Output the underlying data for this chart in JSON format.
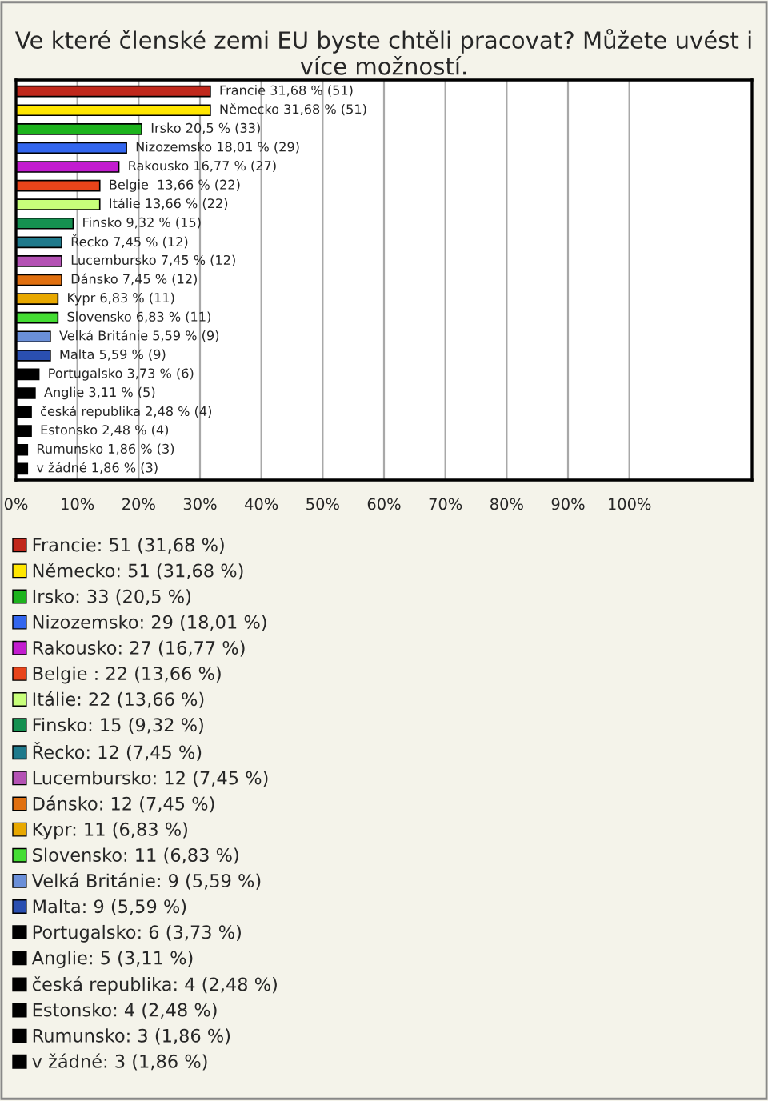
{
  "chart_data": {
    "type": "bar",
    "orientation": "horizontal",
    "title": "Ve které členské zemi EU byste chtěli pracovat? Můžete uvést i více možností.",
    "categories": [
      null,
      null,
      null,
      null,
      null,
      null,
      null,
      null,
      null,
      null,
      null,
      null,
      null,
      null,
      null,
      null,
      null,
      null,
      null,
      null,
      null
    ],
    "series": [
      {
        "name": "Francie: 51 (31,68 %)",
        "color": "#c0281c",
        "values": [
          31.68,
          null,
          null,
          null,
          null,
          null,
          null,
          null,
          null,
          null,
          null,
          null,
          null,
          null,
          null,
          null,
          null,
          null,
          null,
          null,
          null
        ],
        "value_labels": [
          "Francie 31,68 % (51)",
          null,
          null,
          null,
          null,
          null,
          null,
          null,
          null,
          null,
          null,
          null,
          null,
          null,
          null,
          null,
          null,
          null,
          null,
          null,
          null
        ]
      },
      {
        "name": "Německo: 51 (31,68 %)",
        "color": "#ffe600",
        "values": [
          null,
          31.68,
          null,
          null,
          null,
          null,
          null,
          null,
          null,
          null,
          null,
          null,
          null,
          null,
          null,
          null,
          null,
          null,
          null,
          null,
          null
        ],
        "value_labels": [
          null,
          "Německo 31,68 % (51)",
          null,
          null,
          null,
          null,
          null,
          null,
          null,
          null,
          null,
          null,
          null,
          null,
          null,
          null,
          null,
          null,
          null,
          null,
          null
        ]
      },
      {
        "name": "Irsko: 33 (20,5 %)",
        "color": "#1db31d",
        "values": [
          null,
          null,
          20.5,
          null,
          null,
          null,
          null,
          null,
          null,
          null,
          null,
          null,
          null,
          null,
          null,
          null,
          null,
          null,
          null,
          null,
          null
        ],
        "value_labels": [
          null,
          null,
          "Irsko 20,5 % (33)",
          null,
          null,
          null,
          null,
          null,
          null,
          null,
          null,
          null,
          null,
          null,
          null,
          null,
          null,
          null,
          null,
          null,
          null
        ]
      },
      {
        "name": "Nizozemsko: 29 (18,01 %)",
        "color": "#3366ee",
        "values": [
          null,
          null,
          null,
          18.01,
          null,
          null,
          null,
          null,
          null,
          null,
          null,
          null,
          null,
          null,
          null,
          null,
          null,
          null,
          null,
          null,
          null
        ],
        "value_labels": [
          null,
          null,
          null,
          "Nizozemsko 18,01 % (29)",
          null,
          null,
          null,
          null,
          null,
          null,
          null,
          null,
          null,
          null,
          null,
          null,
          null,
          null,
          null,
          null,
          null
        ]
      },
      {
        "name": "Rakousko: 27 (16,77 %)",
        "color": "#c21ccf",
        "values": [
          null,
          null,
          null,
          null,
          16.77,
          null,
          null,
          null,
          null,
          null,
          null,
          null,
          null,
          null,
          null,
          null,
          null,
          null,
          null,
          null,
          null
        ],
        "value_labels": [
          null,
          null,
          null,
          null,
          "Rakousko 16,77 % (27)",
          null,
          null,
          null,
          null,
          null,
          null,
          null,
          null,
          null,
          null,
          null,
          null,
          null,
          null,
          null,
          null
        ]
      },
      {
        "name": "Belgie : 22 (13,66 %)",
        "color": "#e8441a",
        "values": [
          null,
          null,
          null,
          null,
          null,
          13.66,
          null,
          null,
          null,
          null,
          null,
          null,
          null,
          null,
          null,
          null,
          null,
          null,
          null,
          null,
          null
        ],
        "value_labels": [
          null,
          null,
          null,
          null,
          null,
          "Belgie  13,66 % (22)",
          null,
          null,
          null,
          null,
          null,
          null,
          null,
          null,
          null,
          null,
          null,
          null,
          null,
          null,
          null
        ]
      },
      {
        "name": "Itálie: 22 (13,66 %)",
        "color": "#c8ff7a",
        "values": [
          null,
          null,
          null,
          null,
          null,
          null,
          13.66,
          null,
          null,
          null,
          null,
          null,
          null,
          null,
          null,
          null,
          null,
          null,
          null,
          null,
          null
        ],
        "value_labels": [
          null,
          null,
          null,
          null,
          null,
          null,
          "Itálie 13,66 % (22)",
          null,
          null,
          null,
          null,
          null,
          null,
          null,
          null,
          null,
          null,
          null,
          null,
          null,
          null
        ]
      },
      {
        "name": "Finsko: 15 (9,32 %)",
        "color": "#159050",
        "values": [
          null,
          null,
          null,
          null,
          null,
          null,
          null,
          9.32,
          null,
          null,
          null,
          null,
          null,
          null,
          null,
          null,
          null,
          null,
          null,
          null,
          null
        ],
        "value_labels": [
          null,
          null,
          null,
          null,
          null,
          null,
          null,
          "Finsko 9,32 % (15)",
          null,
          null,
          null,
          null,
          null,
          null,
          null,
          null,
          null,
          null,
          null,
          null,
          null
        ]
      },
      {
        "name": "Řecko: 12 (7,45 %)",
        "color": "#1f7a8c",
        "values": [
          null,
          null,
          null,
          null,
          null,
          null,
          null,
          null,
          7.45,
          null,
          null,
          null,
          null,
          null,
          null,
          null,
          null,
          null,
          null,
          null,
          null
        ],
        "value_labels": [
          null,
          null,
          null,
          null,
          null,
          null,
          null,
          null,
          "Řecko 7,45 % (12)",
          null,
          null,
          null,
          null,
          null,
          null,
          null,
          null,
          null,
          null,
          null,
          null
        ]
      },
      {
        "name": "Lucembursko: 12 (7,45 %)",
        "color": "#b452b4",
        "values": [
          null,
          null,
          null,
          null,
          null,
          null,
          null,
          null,
          null,
          7.45,
          null,
          null,
          null,
          null,
          null,
          null,
          null,
          null,
          null,
          null,
          null
        ],
        "value_labels": [
          null,
          null,
          null,
          null,
          null,
          null,
          null,
          null,
          null,
          "Lucembursko 7,45 % (12)",
          null,
          null,
          null,
          null,
          null,
          null,
          null,
          null,
          null,
          null,
          null
        ]
      },
      {
        "name": "Dánsko: 12 (7,45 %)",
        "color": "#e07010",
        "values": [
          null,
          null,
          null,
          null,
          null,
          null,
          null,
          null,
          null,
          null,
          7.45,
          null,
          null,
          null,
          null,
          null,
          null,
          null,
          null,
          null,
          null
        ],
        "value_labels": [
          null,
          null,
          null,
          null,
          null,
          null,
          null,
          null,
          null,
          null,
          "Dánsko 7,45 % (12)",
          null,
          null,
          null,
          null,
          null,
          null,
          null,
          null,
          null,
          null
        ]
      },
      {
        "name": "Kypr: 11 (6,83 %)",
        "color": "#e8a800",
        "values": [
          null,
          null,
          null,
          null,
          null,
          null,
          null,
          null,
          null,
          null,
          null,
          6.83,
          null,
          null,
          null,
          null,
          null,
          null,
          null,
          null,
          null
        ],
        "value_labels": [
          null,
          null,
          null,
          null,
          null,
          null,
          null,
          null,
          null,
          null,
          null,
          "Kypr 6,83 % (11)",
          null,
          null,
          null,
          null,
          null,
          null,
          null,
          null,
          null
        ]
      },
      {
        "name": "Slovensko: 11 (6,83 %)",
        "color": "#44dd33",
        "values": [
          null,
          null,
          null,
          null,
          null,
          null,
          null,
          null,
          null,
          null,
          null,
          null,
          6.83,
          null,
          null,
          null,
          null,
          null,
          null,
          null,
          null
        ],
        "value_labels": [
          null,
          null,
          null,
          null,
          null,
          null,
          null,
          null,
          null,
          null,
          null,
          null,
          "Slovensko 6,83 % (11)",
          null,
          null,
          null,
          null,
          null,
          null,
          null,
          null
        ]
      },
      {
        "name": "Velká Británie: 9 (5,59 %)",
        "color": "#6a8fd8",
        "values": [
          null,
          null,
          null,
          null,
          null,
          null,
          null,
          null,
          null,
          null,
          null,
          null,
          null,
          5.59,
          null,
          null,
          null,
          null,
          null,
          null,
          null
        ],
        "value_labels": [
          null,
          null,
          null,
          null,
          null,
          null,
          null,
          null,
          null,
          null,
          null,
          null,
          null,
          "Velká Británie 5,59 % (9)",
          null,
          null,
          null,
          null,
          null,
          null,
          null
        ]
      },
      {
        "name": "Malta: 9 (5,59 %)",
        "color": "#2a4fb0",
        "values": [
          null,
          null,
          null,
          null,
          null,
          null,
          null,
          null,
          null,
          null,
          null,
          null,
          null,
          null,
          5.59,
          null,
          null,
          null,
          null,
          null,
          null
        ],
        "value_labels": [
          null,
          null,
          null,
          null,
          null,
          null,
          null,
          null,
          null,
          null,
          null,
          null,
          null,
          null,
          "Malta 5,59 % (9)",
          null,
          null,
          null,
          null,
          null,
          null
        ]
      },
      {
        "name": "Portugalsko: 6 (3,73 %)",
        "color": "#000000",
        "values": [
          null,
          null,
          null,
          null,
          null,
          null,
          null,
          null,
          null,
          null,
          null,
          null,
          null,
          null,
          null,
          3.73,
          null,
          null,
          null,
          null,
          null
        ],
        "value_labels": [
          null,
          null,
          null,
          null,
          null,
          null,
          null,
          null,
          null,
          null,
          null,
          null,
          null,
          null,
          null,
          "Portugalsko 3,73 % (6)",
          null,
          null,
          null,
          null,
          null
        ]
      },
      {
        "name": "Anglie: 5 (3,11 %)",
        "color": "#000000",
        "values": [
          null,
          null,
          null,
          null,
          null,
          null,
          null,
          null,
          null,
          null,
          null,
          null,
          null,
          null,
          null,
          null,
          3.11,
          null,
          null,
          null,
          null
        ],
        "value_labels": [
          null,
          null,
          null,
          null,
          null,
          null,
          null,
          null,
          null,
          null,
          null,
          null,
          null,
          null,
          null,
          null,
          "Anglie 3,11 % (5)",
          null,
          null,
          null,
          null
        ]
      },
      {
        "name": "česká republika: 4 (2,48 %)",
        "color": "#000000",
        "values": [
          null,
          null,
          null,
          null,
          null,
          null,
          null,
          null,
          null,
          null,
          null,
          null,
          null,
          null,
          null,
          null,
          null,
          2.48,
          null,
          null,
          null
        ],
        "value_labels": [
          null,
          null,
          null,
          null,
          null,
          null,
          null,
          null,
          null,
          null,
          null,
          null,
          null,
          null,
          null,
          null,
          null,
          "česká republika 2,48 % (4)",
          null,
          null,
          null
        ]
      },
      {
        "name": "Estonsko: 4 (2,48 %)",
        "color": "#000000",
        "values": [
          null,
          null,
          null,
          null,
          null,
          null,
          null,
          null,
          null,
          null,
          null,
          null,
          null,
          null,
          null,
          null,
          null,
          null,
          2.48,
          null,
          null
        ],
        "value_labels": [
          null,
          null,
          null,
          null,
          null,
          null,
          null,
          null,
          null,
          null,
          null,
          null,
          null,
          null,
          null,
          null,
          null,
          null,
          "Estonsko 2,48 % (4)",
          null,
          null
        ]
      },
      {
        "name": "Rumunsko: 3 (1,86 %)",
        "color": "#000000",
        "values": [
          null,
          null,
          null,
          null,
          null,
          null,
          null,
          null,
          null,
          null,
          null,
          null,
          null,
          null,
          null,
          null,
          null,
          null,
          null,
          1.86,
          null
        ],
        "value_labels": [
          null,
          null,
          null,
          null,
          null,
          null,
          null,
          null,
          null,
          null,
          null,
          null,
          null,
          null,
          null,
          null,
          null,
          null,
          null,
          "Rumunsko 1,86 % (3)",
          null
        ]
      },
      {
        "name": "v žádné: 3 (1,86 %)",
        "color": "#000000",
        "values": [
          null,
          null,
          null,
          null,
          null,
          null,
          null,
          null,
          null,
          null,
          null,
          null,
          null,
          null,
          null,
          null,
          null,
          null,
          null,
          null,
          1.86
        ],
        "value_labels": [
          null,
          null,
          null,
          null,
          null,
          null,
          null,
          null,
          null,
          null,
          null,
          null,
          null,
          null,
          null,
          null,
          null,
          null,
          null,
          null,
          "v žádné 1,86 % (3)"
        ]
      }
    ],
    "xlim": [
      0,
      120
    ],
    "xticks": [
      {
        "value": 0,
        "label": "0%"
      },
      {
        "value": 10,
        "label": "10%"
      },
      {
        "value": 20,
        "label": "20%"
      },
      {
        "value": 30,
        "label": "30%"
      },
      {
        "value": 40,
        "label": "40%"
      },
      {
        "value": 50,
        "label": "50%"
      },
      {
        "value": 60,
        "label": "60%"
      },
      {
        "value": 70,
        "label": "70%"
      },
      {
        "value": 80,
        "label": "80%"
      },
      {
        "value": 90,
        "label": "90%"
      },
      {
        "value": 100,
        "label": "100%"
      }
    ],
    "grid": "x",
    "legend": "bottom",
    "tick_labels": "x"
  }
}
